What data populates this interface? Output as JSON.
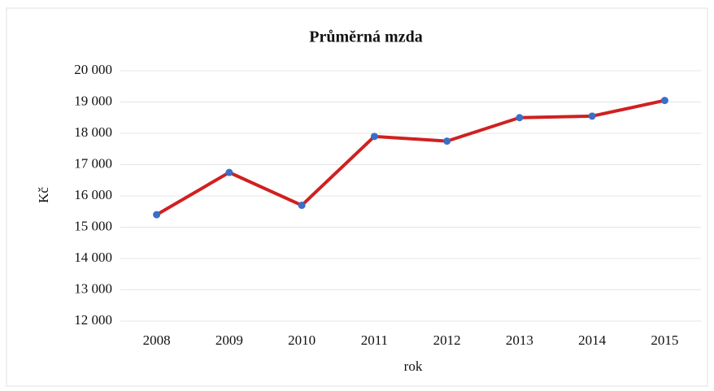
{
  "chart_data": {
    "type": "line",
    "title": "Průměrná mzda",
    "x_label": "rok",
    "y_label": "Kč",
    "categories": [
      "2008",
      "2009",
      "2010",
      "2011",
      "2012",
      "2013",
      "2014",
      "2015"
    ],
    "series": [
      {
        "name": "Průměrná mzda",
        "color": "#d02020",
        "marker_color": "#3b6fc6",
        "values": [
          15400,
          16750,
          15700,
          17900,
          17750,
          18500,
          18550,
          19050
        ]
      }
    ],
    "ylim": [
      12000,
      20000
    ],
    "yticks": [
      {
        "value": 12000,
        "label": "12 000"
      },
      {
        "value": 13000,
        "label": "13 000"
      },
      {
        "value": 14000,
        "label": "14 000"
      },
      {
        "value": 15000,
        "label": "15 000"
      },
      {
        "value": 16000,
        "label": "16 000"
      },
      {
        "value": 17000,
        "label": "17 000"
      },
      {
        "value": 18000,
        "label": "18 000"
      },
      {
        "value": 19000,
        "label": "19 000"
      },
      {
        "value": 20000,
        "label": "20 000"
      }
    ],
    "grid": true
  }
}
